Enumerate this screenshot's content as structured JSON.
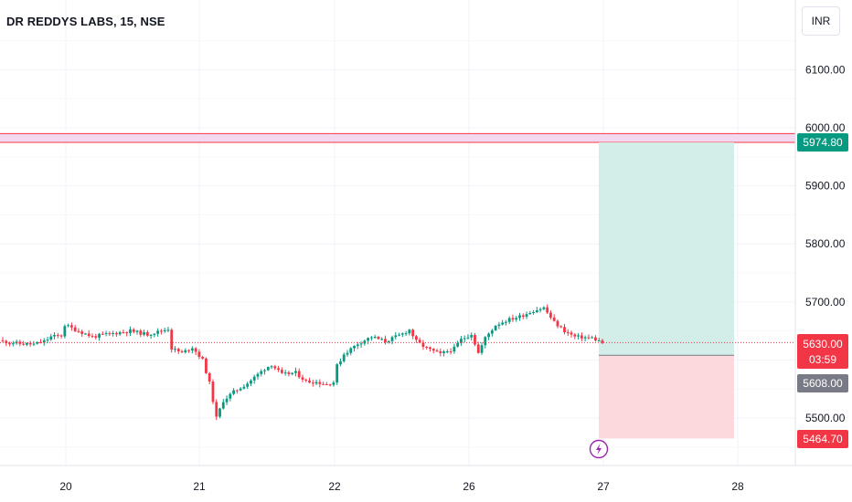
{
  "header": {
    "title": "DR REDDYS LABS, 15, NSE",
    "currency": "INR"
  },
  "colors": {
    "up": "#089981",
    "down": "#f23645",
    "zone_fill": "#f3d9ef",
    "zone_line": "#f23645",
    "target_fill": "#d3eee8",
    "stop_fill": "#fcd9dc",
    "grid": "#f0f3fa",
    "last_price_tag": "#f23645",
    "entry_tag": "#787b86"
  },
  "chart_data": {
    "type": "candlestick",
    "symbol": "DR REDDYS LABS",
    "interval": "15",
    "exchange": "NSE",
    "ylim": [
      5410,
      6180
    ],
    "y_ticks": [
      "5500.00",
      "5600.00",
      "5700.00",
      "5800.00",
      "5900.00",
      "6000.00",
      "6100.00"
    ],
    "x_ticks": [
      "20",
      "21",
      "22",
      "26",
      "27",
      "28"
    ],
    "resistance_zone": {
      "low": 5974.8,
      "high": 5990
    },
    "long_position": {
      "entry": 5608.0,
      "target": 5974.8,
      "stop": 5464.7
    },
    "last_price": 5630.0,
    "countdown": "03:59",
    "price_tags": {
      "target": "5974.80",
      "last": "5630.00",
      "countdown": "03:59",
      "entry": "5608.00",
      "stop": "5464.70"
    },
    "close_path": [
      [
        0,
        5632
      ],
      [
        5,
        5628
      ],
      [
        9,
        5627
      ],
      [
        12,
        5632
      ],
      [
        14,
        5640
      ],
      [
        17,
        5642
      ],
      [
        18,
        5660
      ],
      [
        22,
        5650
      ],
      [
        26,
        5640
      ],
      [
        31,
        5645
      ],
      [
        37,
        5650
      ],
      [
        42,
        5644
      ],
      [
        46,
        5650
      ],
      [
        48,
        5654
      ],
      [
        49,
        5620
      ],
      [
        52,
        5612
      ],
      [
        55,
        5622
      ],
      [
        58,
        5600
      ],
      [
        60,
        5560
      ],
      [
        62,
        5500
      ],
      [
        64,
        5530
      ],
      [
        67,
        5545
      ],
      [
        71,
        5560
      ],
      [
        76,
        5585
      ],
      [
        78,
        5592
      ],
      [
        81,
        5575
      ],
      [
        85,
        5578
      ],
      [
        88,
        5563
      ],
      [
        91,
        5562
      ],
      [
        94,
        5558
      ],
      [
        96,
        5562
      ],
      [
        97,
        5590
      ],
      [
        99,
        5610
      ],
      [
        103,
        5628
      ],
      [
        107,
        5640
      ],
      [
        111,
        5632
      ],
      [
        116,
        5645
      ],
      [
        118,
        5652
      ],
      [
        120,
        5632
      ],
      [
        123,
        5620
      ],
      [
        127,
        5610
      ],
      [
        131,
        5620
      ],
      [
        133,
        5635
      ],
      [
        136,
        5645
      ],
      [
        138,
        5612
      ],
      [
        140,
        5638
      ],
      [
        143,
        5660
      ],
      [
        146,
        5668
      ],
      [
        150,
        5675
      ],
      [
        154,
        5685
      ],
      [
        157,
        5690
      ],
      [
        160,
        5665
      ],
      [
        163,
        5650
      ],
      [
        166,
        5640
      ],
      [
        171,
        5638
      ],
      [
        174,
        5630
      ]
    ]
  }
}
